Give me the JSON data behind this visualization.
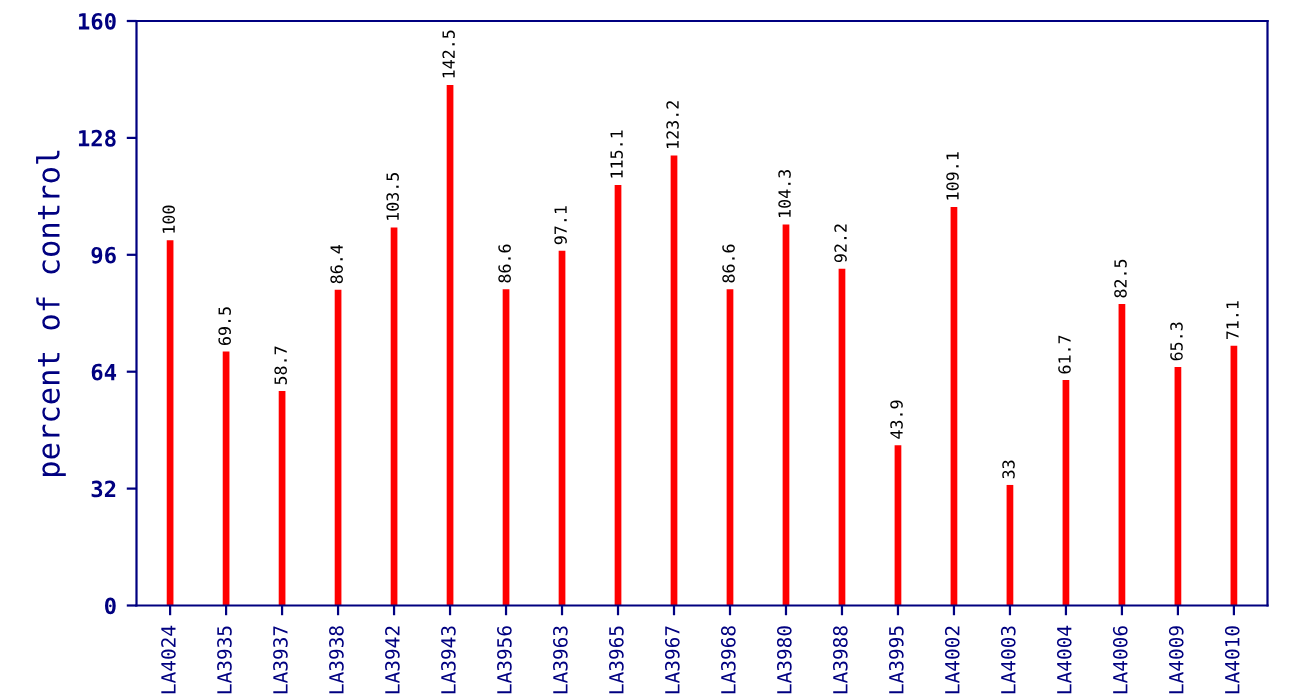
{
  "chart_data": {
    "type": "bar",
    "ylabel": "percent of control",
    "categories": [
      "LA4024",
      "LA3935",
      "LA3937",
      "LA3938",
      "LA3942",
      "LA3943",
      "LA3956",
      "LA3963",
      "LA3965",
      "LA3967",
      "LA3968",
      "LA3980",
      "LA3988",
      "LA3995",
      "LA4002",
      "LA4003",
      "LA4004",
      "LA4006",
      "LA4009",
      "LA4010"
    ],
    "values": [
      100,
      69.5,
      58.7,
      86.4,
      103.5,
      142.5,
      86.6,
      97.1,
      115.1,
      123.2,
      86.6,
      104.3,
      92.2,
      43.9,
      109.1,
      33,
      61.7,
      82.5,
      65.3,
      71.1
    ],
    "color": "#ff0000",
    "ylim": [
      0,
      160
    ],
    "yticks": [
      0,
      32,
      64,
      96,
      128,
      160
    ],
    "data_labels": true,
    "grid": false
  }
}
